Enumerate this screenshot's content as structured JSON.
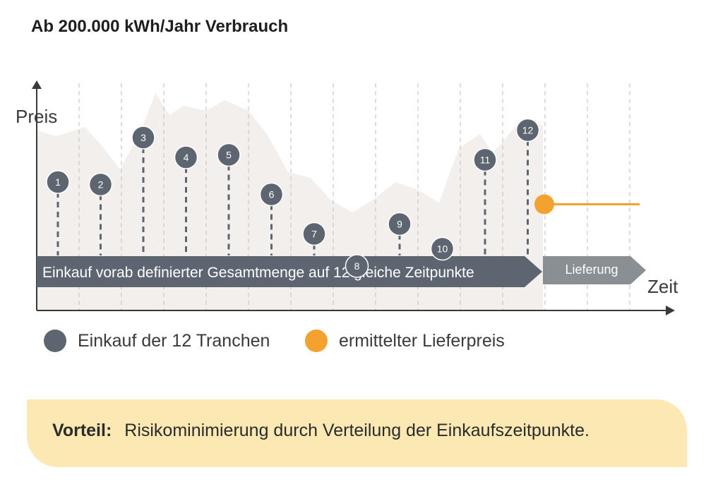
{
  "title": "Ab 200.000 kWh/Jahr Verbrauch",
  "axes": {
    "y_label": "Preis",
    "x_label": "Zeit"
  },
  "arrows": {
    "purchase": "Einkauf vorab definierter Gesamtmenge auf 12 gleiche Zeitpunkte",
    "delivery": "Lieferung"
  },
  "tranches": [
    {
      "label": "1",
      "level": 0.52
    },
    {
      "label": "2",
      "level": 0.51
    },
    {
      "label": "3",
      "level": 0.7
    },
    {
      "label": "4",
      "level": 0.62
    },
    {
      "label": "5",
      "level": 0.63
    },
    {
      "label": "6",
      "level": 0.47
    },
    {
      "label": "7",
      "level": 0.31
    },
    {
      "label": "8",
      "level": 0.18
    },
    {
      "label": "9",
      "level": 0.35
    },
    {
      "label": "10",
      "level": 0.25
    },
    {
      "label": "11",
      "level": 0.61
    },
    {
      "label": "12",
      "level": 0.73
    }
  ],
  "delivery_price_level": 0.43,
  "legend": [
    {
      "label": "Einkauf der 12 Tranchen",
      "color": "#5d6670"
    },
    {
      "label": "ermittelter Lieferpreis",
      "color": "#f3a230"
    }
  ],
  "note": {
    "label": "Vorteil:",
    "text": "Risikominimierung durch Verteilung der Einkaufszeitpunkte."
  },
  "colors": {
    "marker": "#5d6670",
    "arrow_purchase": "#5d6670",
    "arrow_delivery": "#8a8f94",
    "area": "#f2efed",
    "delivery_price": "#f3a230",
    "note_bg": "#fbe8b3"
  }
}
